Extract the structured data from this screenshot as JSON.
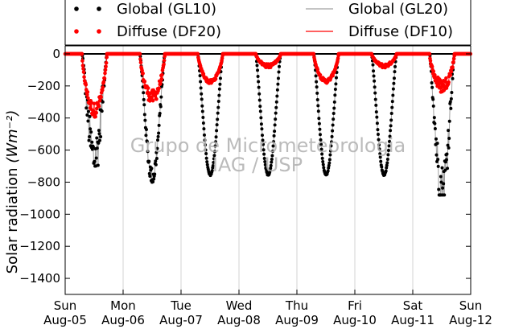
{
  "chart_data": {
    "type": "scatter",
    "title": "",
    "ylabel": "Solar radiation",
    "ylabel_unit": "(Wm⁻²)",
    "ylim": [
      -1500,
      50
    ],
    "yticks": [
      0,
      -200,
      -400,
      -600,
      -800,
      -1000,
      -1200,
      -1400
    ],
    "xlim": [
      0,
      7
    ],
    "xticks": [
      {
        "x": 0,
        "day": "Sun",
        "date": "Aug-05"
      },
      {
        "x": 1,
        "day": "Mon",
        "date": "Aug-06"
      },
      {
        "x": 2,
        "day": "Tue",
        "date": "Aug-07"
      },
      {
        "x": 3,
        "day": "Wed",
        "date": "Aug-08"
      },
      {
        "x": 4,
        "day": "Thu",
        "date": "Aug-09"
      },
      {
        "x": 5,
        "day": "Fri",
        "date": "Aug-10"
      },
      {
        "x": 6,
        "day": "Sat",
        "date": "Aug-11"
      },
      {
        "x": 7,
        "day": "Sun",
        "date": "Aug-12"
      }
    ],
    "grid": "vertical",
    "legend_position": "top",
    "series": [
      {
        "name": "Global (GL10)",
        "style": "points",
        "color": "#000000"
      },
      {
        "name": "Diffuse (DF20)",
        "style": "points",
        "color": "#ff0000"
      },
      {
        "name": "Global (GL20)",
        "style": "line",
        "color": "#a0a0a0"
      },
      {
        "name": "Diffuse (DF10)",
        "style": "line",
        "color": "#ff0000"
      }
    ],
    "days": [
      {
        "day": 0,
        "global_peak": -680,
        "diffuse_peak": -350,
        "noise": 0.45
      },
      {
        "day": 1,
        "global_peak": -780,
        "diffuse_peak": -270,
        "noise": 0.15
      },
      {
        "day": 2,
        "global_peak": -755,
        "diffuse_peak": -175,
        "noise": 0.02
      },
      {
        "day": 3,
        "global_peak": -755,
        "diffuse_peak": -75,
        "noise": 0.02
      },
      {
        "day": 4,
        "global_peak": -755,
        "diffuse_peak": -170,
        "noise": 0.02
      },
      {
        "day": 5,
        "global_peak": -755,
        "diffuse_peak": -75,
        "noise": 0.02
      },
      {
        "day": 6,
        "global_peak": -860,
        "diffuse_peak": -200,
        "noise": 0.35
      }
    ],
    "watermark": [
      "Grupo de Micrometeorologia",
      "IAG / USP"
    ]
  }
}
